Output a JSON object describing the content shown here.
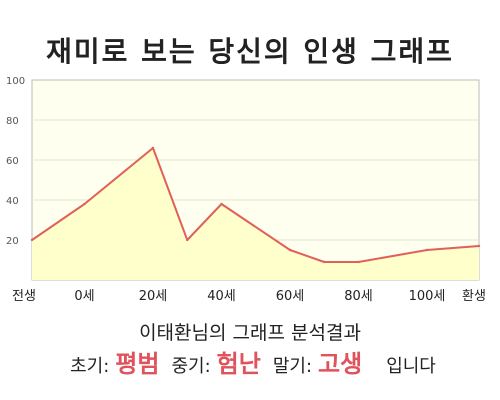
{
  "title": "재미로 보는 당신의 인생 그래프",
  "summary": "이태환님의 그래프 분석결과",
  "result": {
    "early_label": "초기:",
    "early_value": "평범",
    "mid_label": "중기:",
    "mid_value": "험난",
    "late_label": "말기:",
    "late_value": "고생",
    "ending": "입니다"
  },
  "colors": {
    "line": "#e0605a",
    "fill": "#ffffcc",
    "plot_bg": "#fffff0",
    "accent": "#e0525c"
  },
  "chart_data": {
    "type": "area",
    "title": "재미로 보는 당신의 인생 그래프",
    "xlabel": "",
    "ylabel": "",
    "categories": [
      "전생",
      "0세",
      "20세",
      "40세",
      "60세",
      "80세",
      "100세",
      "환생"
    ],
    "x": [
      0,
      1,
      2,
      2.5,
      3,
      4,
      4.5,
      5,
      6,
      7
    ],
    "y": [
      20,
      38,
      66,
      20,
      38,
      15,
      9,
      9,
      15,
      17
    ],
    "ylim": [
      0,
      100
    ],
    "yticks": [
      20,
      40,
      60,
      80,
      100
    ],
    "grid": true,
    "legend": "none"
  }
}
